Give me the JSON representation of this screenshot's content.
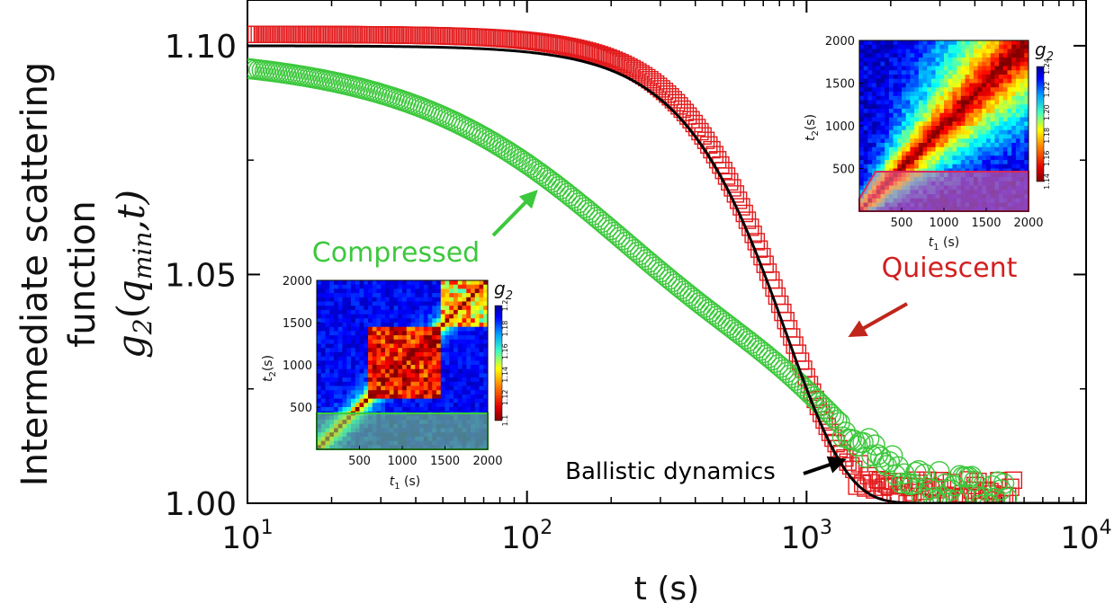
{
  "chart_data": {
    "type": "scatter",
    "x_scale": "log",
    "xlim": [
      10,
      10000
    ],
    "ylim": [
      1.0,
      1.11
    ],
    "xlabel": "t (s)",
    "ylabel": {
      "line1": "Intermediate scattering",
      "line2": "function",
      "symbol": "g",
      "subscript": "2",
      "arg_open": "(",
      "arg_q": "q",
      "arg_sub": "min",
      "arg_rest": ",t)"
    },
    "x_ticks": [
      {
        "value": 10,
        "base": "10",
        "exp": "1"
      },
      {
        "value": 100,
        "base": "10",
        "exp": "2"
      },
      {
        "value": 1000,
        "base": "10",
        "exp": "3"
      },
      {
        "value": 10000,
        "base": "10",
        "exp": "4"
      }
    ],
    "y_ticks": [
      {
        "value": 1.0,
        "label": "1.00"
      },
      {
        "value": 1.05,
        "label": "1.05"
      },
      {
        "value": 1.1,
        "label": "1.10"
      }
    ],
    "grid": false,
    "series": [
      {
        "name": "Quiescent",
        "marker": "square",
        "color": "#e31a1c",
        "label_color": "#d21f1f",
        "model": {
          "y0": 1.1025,
          "amplitude": 0.1,
          "tau": 850,
          "beta": 2.0,
          "baseline": 1.0025
        },
        "x_range": [
          10,
          5500
        ],
        "n_points": 260
      },
      {
        "name": "Compressed",
        "marker": "circle",
        "color": "#3cc83c",
        "label_color": "#3cc83c",
        "model": {
          "baseline": 1.003,
          "a1": 0.055,
          "tau1": 180,
          "beta1": 1.0,
          "a2": 0.04,
          "tau2": 1300,
          "beta2": 1.8
        },
        "x_range": [
          10,
          5200
        ],
        "n_points": 260
      },
      {
        "name": "Ballistic dynamics",
        "marker": "line",
        "color": "#000000",
        "model": {
          "y0": 1.1,
          "amplitude": 0.1,
          "tau": 850,
          "beta": 2.0,
          "baseline": 1.0
        },
        "x_range": [
          10,
          10000
        ]
      }
    ],
    "annotations": [
      {
        "text": "Compressed",
        "color": "#3cc83c",
        "arrow_color": "#3cc83c"
      },
      {
        "text": "Quiescent",
        "color": "#d21f1f",
        "arrow_color": "#c0261b"
      },
      {
        "text": "Ballistic dynamics",
        "color": "#000000",
        "arrow_color": "#000000"
      }
    ],
    "insets": [
      {
        "name": "inset-compressed",
        "colorbar_title": "g",
        "colorbar_sub": "2",
        "colorbar_ticks": [
          "1.1",
          "1.12",
          "1.14",
          "1.16",
          "1.18",
          "1.2"
        ],
        "x_ticks": [
          "500",
          "1000",
          "1500",
          "2000"
        ],
        "y_ticks": [
          "500",
          "1000",
          "1500",
          "2000"
        ],
        "xlabel": {
          "main": "t",
          "sub": "1",
          "rest": " (s)"
        },
        "ylabel": {
          "main": "t",
          "sub": "2",
          "rest": "(s)"
        },
        "highlight_color": "#7fd36b",
        "highlight_edge": "#38d038"
      },
      {
        "name": "inset-quiescent",
        "colorbar_title": "g",
        "colorbar_sub": "2",
        "colorbar_ticks": [
          "1.14",
          "1.16",
          "1.18",
          "1.20",
          "1.22",
          "1.24"
        ],
        "x_ticks": [
          "500",
          "1000",
          "1500",
          "2000"
        ],
        "y_ticks": [
          "500",
          "1000",
          "1500",
          "2000"
        ],
        "xlabel": {
          "main": "t",
          "sub": "1",
          "rest": " (s)"
        },
        "ylabel": {
          "main": "t",
          "sub": "2",
          "rest": "(s)"
        },
        "highlight_color": "#e8709a",
        "highlight_edge": "#d8285a"
      }
    ]
  }
}
